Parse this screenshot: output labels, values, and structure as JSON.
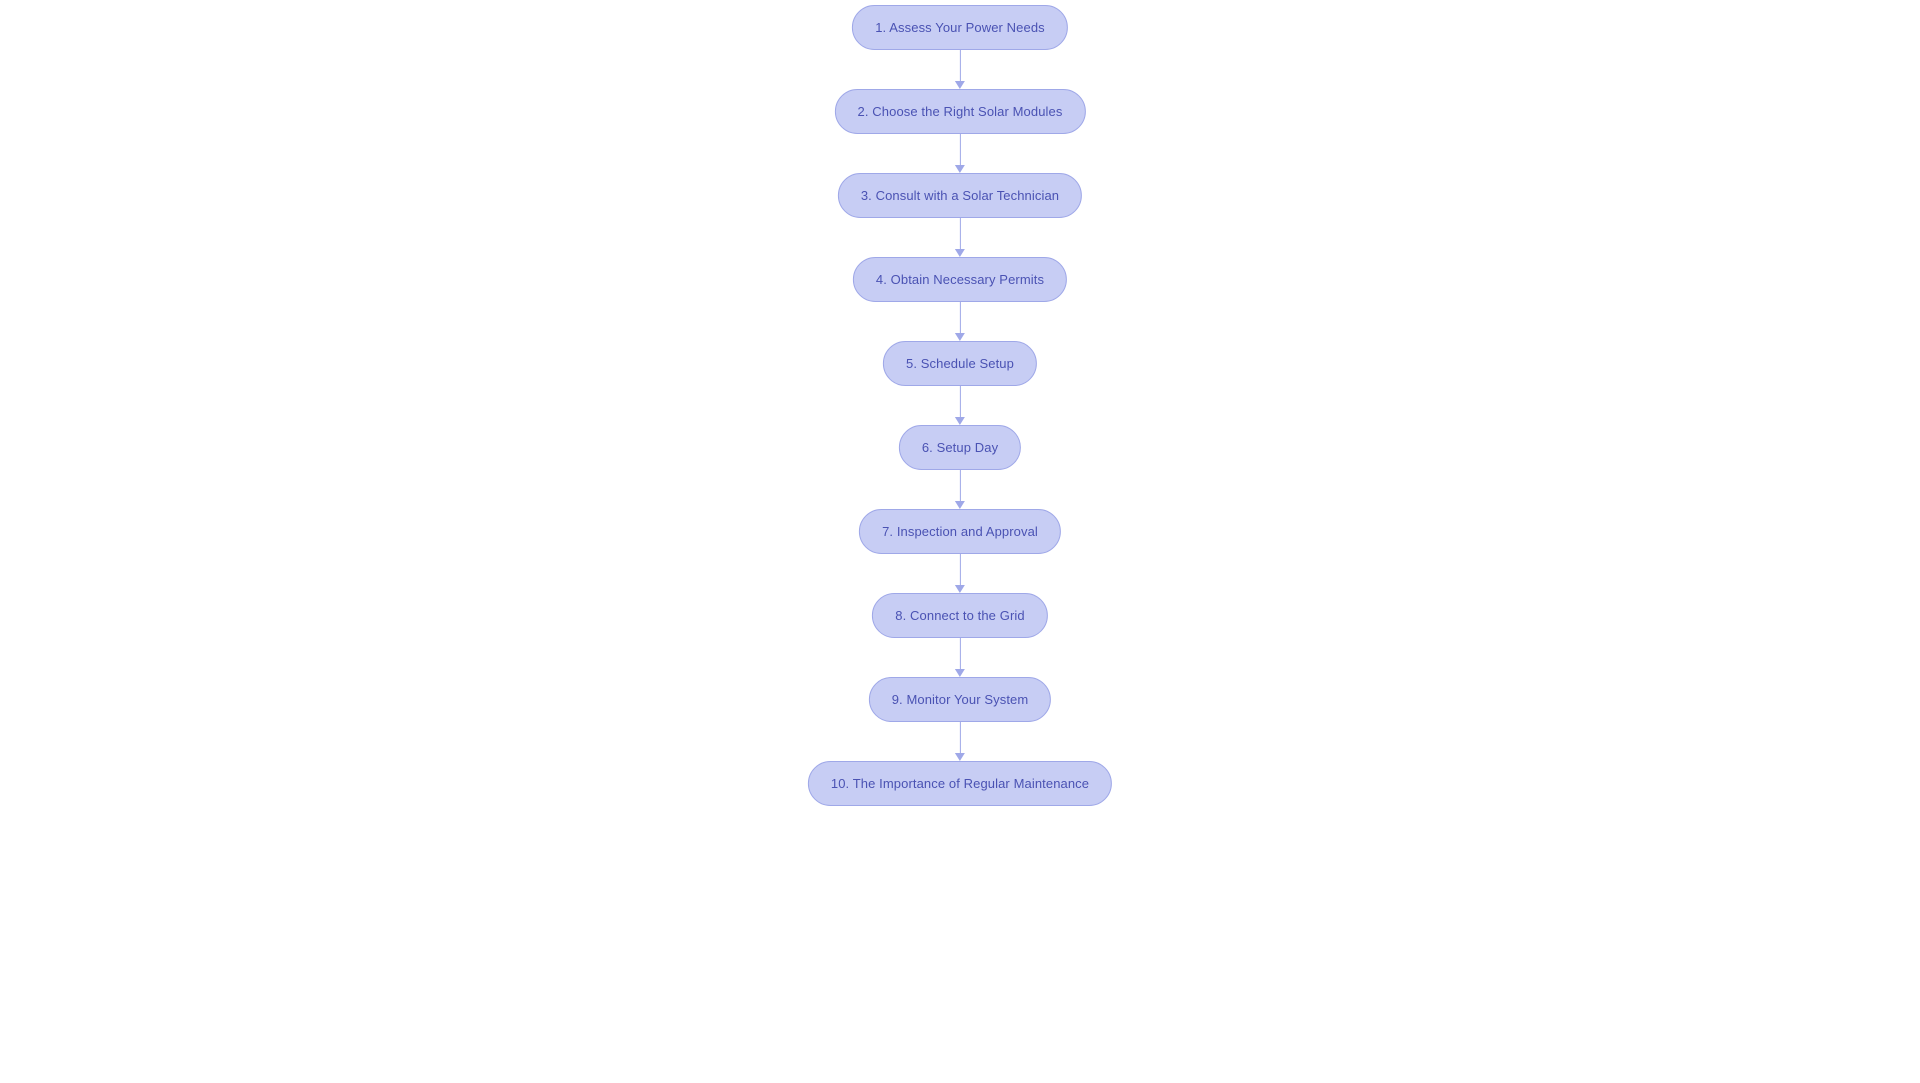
{
  "flowchart": {
    "type": "flowchart",
    "direction": "vertical",
    "node_style": {
      "fill_color": "#c7cdf4",
      "border_color": "#9fa8e8",
      "text_color": "#4a52b3",
      "border_radius": 23,
      "font_size": 13
    },
    "edge_style": {
      "line_color": "#9fa8e8",
      "arrow_color": "#9fa8e8",
      "line_width": 1
    },
    "background_color": "#ffffff",
    "nodes": [
      {
        "id": "n1",
        "label": "1. Assess Your Power Needs"
      },
      {
        "id": "n2",
        "label": "2. Choose the Right Solar Modules"
      },
      {
        "id": "n3",
        "label": "3. Consult with a Solar Technician"
      },
      {
        "id": "n4",
        "label": "4. Obtain Necessary Permits"
      },
      {
        "id": "n5",
        "label": "5. Schedule Setup"
      },
      {
        "id": "n6",
        "label": "6. Setup Day"
      },
      {
        "id": "n7",
        "label": "7. Inspection and Approval"
      },
      {
        "id": "n8",
        "label": "8. Connect to the Grid"
      },
      {
        "id": "n9",
        "label": "9. Monitor Your System"
      },
      {
        "id": "n10",
        "label": "10. The Importance of Regular Maintenance"
      }
    ],
    "edges": [
      {
        "from": "n1",
        "to": "n2"
      },
      {
        "from": "n2",
        "to": "n3"
      },
      {
        "from": "n3",
        "to": "n4"
      },
      {
        "from": "n4",
        "to": "n5"
      },
      {
        "from": "n5",
        "to": "n6"
      },
      {
        "from": "n6",
        "to": "n7"
      },
      {
        "from": "n7",
        "to": "n8"
      },
      {
        "from": "n8",
        "to": "n9"
      },
      {
        "from": "n9",
        "to": "n10"
      }
    ]
  }
}
